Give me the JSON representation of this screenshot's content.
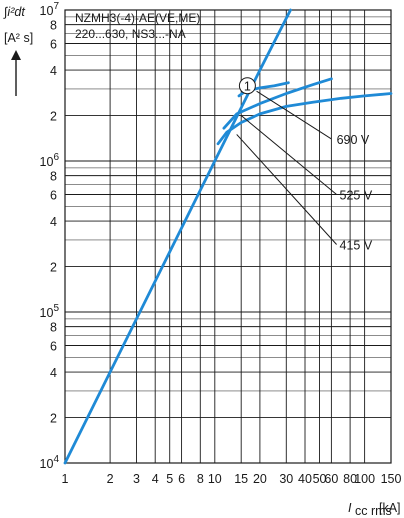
{
  "chart_data": {
    "type": "line",
    "title_lines": [
      "NZMH3(-4)-AE(VE,ME)",
      "220...630, NS3...-NA"
    ],
    "ylabel_top": "∫i²dt",
    "ylabel_unit": "[A² s]",
    "xlabel": "I",
    "xlabel_sub": "cc rms",
    "xlabel_unit": "[kA]",
    "xscale": "log",
    "yscale": "log",
    "xlim": [
      1,
      150
    ],
    "ylim": [
      10000,
      10000000
    ],
    "grid": true,
    "x_ticks": [
      1,
      2,
      3,
      4,
      5,
      6,
      8,
      10,
      15,
      20,
      30,
      40,
      50,
      60,
      80,
      100,
      150
    ],
    "x_tick_labels": [
      "1",
      "2",
      "3",
      "4",
      "5",
      "6",
      "8",
      "10",
      "15",
      "20",
      "30",
      "40",
      "50",
      "60",
      "80",
      "100",
      "150"
    ],
    "y_tick_labels": [
      {
        "value": 10000,
        "mantissa": "10",
        "exp": "4"
      },
      {
        "value": 20000,
        "mantissa": "2",
        "exp": ""
      },
      {
        "value": 40000,
        "mantissa": "4",
        "exp": ""
      },
      {
        "value": 60000,
        "mantissa": "6",
        "exp": ""
      },
      {
        "value": 80000,
        "mantissa": "8",
        "exp": ""
      },
      {
        "value": 100000,
        "mantissa": "10",
        "exp": "5"
      },
      {
        "value": 200000,
        "mantissa": "2",
        "exp": ""
      },
      {
        "value": 400000,
        "mantissa": "4",
        "exp": ""
      },
      {
        "value": 600000,
        "mantissa": "6",
        "exp": ""
      },
      {
        "value": 800000,
        "mantissa": "8",
        "exp": ""
      },
      {
        "value": 1000000,
        "mantissa": "10",
        "exp": "6"
      },
      {
        "value": 2000000,
        "mantissa": "2",
        "exp": ""
      },
      {
        "value": 4000000,
        "mantissa": "4",
        "exp": ""
      },
      {
        "value": 6000000,
        "mantissa": "6",
        "exp": ""
      },
      {
        "value": 8000000,
        "mantissa": "8",
        "exp": ""
      },
      {
        "value": 10000000,
        "mantissa": "10",
        "exp": "7"
      }
    ],
    "line_color": "#1f8ad6",
    "series": [
      {
        "x": [
          1,
          10,
          20,
          32
        ],
        "y": [
          10000,
          1000000,
          4000000,
          10000000
        ]
      },
      {
        "x": [
          14.5,
          16,
          20,
          25,
          31
        ],
        "y": [
          2700000,
          2900000,
          3050000,
          3150000,
          3300000
        ]
      },
      {
        "x": [
          11.5,
          14,
          20,
          30,
          45,
          60
        ],
        "y": [
          1650000,
          2050000,
          2400000,
          2800000,
          3200000,
          3500000
        ]
      },
      {
        "x": [
          10.5,
          12,
          15,
          20,
          30,
          45,
          70,
          100,
          150
        ],
        "y": [
          1300000,
          1550000,
          1800000,
          2050000,
          2300000,
          2450000,
          2600000,
          2700000,
          2800000
        ]
      }
    ],
    "annotations": [
      {
        "text": "690 V",
        "x": 65,
        "y": 1400000
      },
      {
        "text": "525 V",
        "x": 68,
        "y": 600000
      },
      {
        "text": "415 V",
        "x": 68,
        "y": 280000
      }
    ],
    "leaders": [
      {
        "from": [
          19,
          2900000
        ],
        "to": [
          60,
          1400000
        ]
      },
      {
        "from": [
          15,
          2000000
        ],
        "to": [
          65,
          600000
        ]
      },
      {
        "from": [
          14,
          1500000
        ],
        "to": [
          65,
          280000
        ]
      }
    ],
    "marker": {
      "text": "1",
      "x": 16.5,
      "y": 3150000
    }
  }
}
